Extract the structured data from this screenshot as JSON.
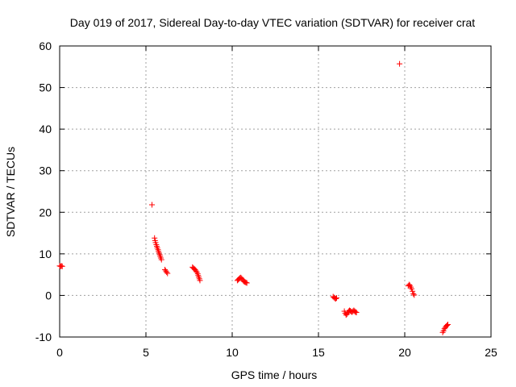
{
  "chart_data": {
    "type": "scatter",
    "title": "Day 019 of 2017, Sidereal Day-to-day VTEC variation (SDTVAR) for receiver crat",
    "xlabel": "GPS time / hours",
    "ylabel": "SDTVAR / TECUs",
    "xlim": [
      0,
      25
    ],
    "ylim": [
      -10,
      60
    ],
    "xticks": [
      0,
      5,
      10,
      15,
      20,
      25
    ],
    "yticks": [
      -10,
      0,
      10,
      20,
      30,
      40,
      50,
      60
    ],
    "grid": true,
    "marker": "plus",
    "color": "#ff0000",
    "series": [
      {
        "name": "SDTVAR",
        "points": [
          [
            0.0,
            7.1
          ],
          [
            0.05,
            7.0
          ],
          [
            0.1,
            7.1
          ],
          [
            0.15,
            7.0
          ],
          [
            5.35,
            21.8
          ],
          [
            5.5,
            13.8
          ],
          [
            5.53,
            13.2
          ],
          [
            5.56,
            12.7
          ],
          [
            5.6,
            12.2
          ],
          [
            5.63,
            11.8
          ],
          [
            5.66,
            11.4
          ],
          [
            5.7,
            11.0
          ],
          [
            5.73,
            10.6
          ],
          [
            5.76,
            10.2
          ],
          [
            5.8,
            9.8
          ],
          [
            5.83,
            9.4
          ],
          [
            5.86,
            9.0
          ],
          [
            5.9,
            8.6
          ],
          [
            6.1,
            6.2
          ],
          [
            6.15,
            5.9
          ],
          [
            6.2,
            5.6
          ],
          [
            6.25,
            5.3
          ],
          [
            7.7,
            6.8
          ],
          [
            7.75,
            6.6
          ],
          [
            7.8,
            6.4
          ],
          [
            7.85,
            6.2
          ],
          [
            7.9,
            5.9
          ],
          [
            7.95,
            5.6
          ],
          [
            8.0,
            5.2
          ],
          [
            8.03,
            4.8
          ],
          [
            8.06,
            4.4
          ],
          [
            8.1,
            4.0
          ],
          [
            8.13,
            3.6
          ],
          [
            10.3,
            3.6
          ],
          [
            10.35,
            3.8
          ],
          [
            10.4,
            4.0
          ],
          [
            10.45,
            4.2
          ],
          [
            10.5,
            4.3
          ],
          [
            10.55,
            4.1
          ],
          [
            10.6,
            3.8
          ],
          [
            10.65,
            3.5
          ],
          [
            10.7,
            3.3
          ],
          [
            10.75,
            3.2
          ],
          [
            10.8,
            3.1
          ],
          [
            10.85,
            3.0
          ],
          [
            15.85,
            -0.3
          ],
          [
            15.9,
            -0.5
          ],
          [
            15.95,
            -0.7
          ],
          [
            16.0,
            -0.8
          ],
          [
            16.05,
            -0.6
          ],
          [
            16.5,
            -3.8
          ],
          [
            16.55,
            -4.3
          ],
          [
            16.6,
            -4.7
          ],
          [
            16.65,
            -4.5
          ],
          [
            16.7,
            -4.1
          ],
          [
            16.75,
            -3.8
          ],
          [
            16.8,
            -3.6
          ],
          [
            16.85,
            -3.7
          ],
          [
            16.9,
            -3.9
          ],
          [
            16.95,
            -4.0
          ],
          [
            17.0,
            -3.8
          ],
          [
            17.05,
            -3.6
          ],
          [
            17.1,
            -3.8
          ],
          [
            17.15,
            -4.0
          ],
          [
            17.2,
            -4.1
          ],
          [
            19.7,
            55.7
          ],
          [
            20.2,
            2.3
          ],
          [
            20.25,
            2.6
          ],
          [
            20.3,
            2.4
          ],
          [
            20.35,
            2.0
          ],
          [
            20.4,
            1.6
          ],
          [
            20.45,
            1.0
          ],
          [
            20.5,
            0.4
          ],
          [
            20.55,
            0.1
          ],
          [
            22.2,
            -8.9
          ],
          [
            22.25,
            -8.5
          ],
          [
            22.3,
            -8.0
          ],
          [
            22.35,
            -7.7
          ],
          [
            22.4,
            -7.4
          ],
          [
            22.45,
            -7.2
          ],
          [
            22.5,
            -7.0
          ]
        ]
      }
    ]
  }
}
